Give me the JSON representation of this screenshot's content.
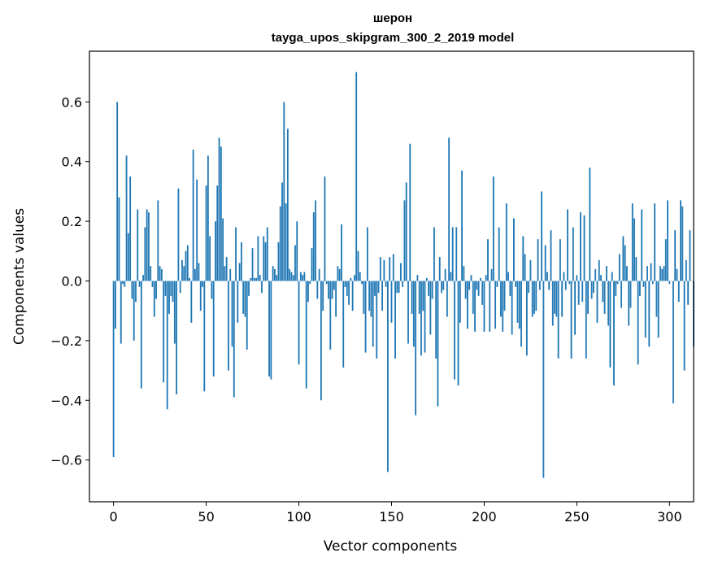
{
  "chart_data": {
    "type": "bar",
    "title_lines": [
      "шерон",
      "tayga_upos_skipgram_300_2_2019 model"
    ],
    "xlabel": "Vector components",
    "ylabel": "Components values",
    "xlim": [
      -13,
      313
    ],
    "ylim": [
      -0.74,
      0.77
    ],
    "xticks": [
      0,
      50,
      100,
      150,
      200,
      250,
      300
    ],
    "xtick_labels": [
      "0",
      "50",
      "100",
      "150",
      "200",
      "250",
      "300"
    ],
    "yticks": [
      -0.6,
      -0.4,
      -0.2,
      0.0,
      0.2,
      0.4,
      0.6
    ],
    "ytick_labels": [
      "−0.6",
      "−0.4",
      "−0.2",
      "0.0",
      "0.2",
      "0.4",
      "0.6"
    ],
    "bar_color": "#1f77b4",
    "values": [
      -0.59,
      -0.16,
      0.6,
      0.28,
      -0.21,
      -0.01,
      -0.02,
      0.42,
      0.16,
      0.35,
      -0.06,
      -0.2,
      -0.07,
      0.24,
      -0.02,
      -0.36,
      0.02,
      0.18,
      0.24,
      0.23,
      0.05,
      -0.02,
      -0.12,
      -0.06,
      0.27,
      0.05,
      0.04,
      -0.34,
      -0.05,
      -0.43,
      -0.11,
      -0.05,
      -0.07,
      -0.21,
      -0.38,
      0.31,
      -0.04,
      0.07,
      0.05,
      0.1,
      0.12,
      0.01,
      -0.14,
      0.44,
      0.04,
      0.34,
      0.06,
      -0.1,
      -0.02,
      -0.37,
      0.32,
      0.42,
      0.15,
      -0.06,
      -0.32,
      0.2,
      0.32,
      0.48,
      0.45,
      0.21,
      0.05,
      0.08,
      -0.3,
      0.04,
      -0.22,
      -0.39,
      0.18,
      -0.14,
      0.06,
      0.13,
      -0.11,
      -0.12,
      -0.23,
      -0.05,
      0.01,
      0.11,
      0.01,
      0.01,
      0.15,
      0.02,
      -0.04,
      0.15,
      0.13,
      0.18,
      -0.32,
      -0.33,
      0.05,
      0.04,
      0.02,
      0.13,
      0.25,
      0.33,
      0.6,
      0.26,
      0.51,
      0.04,
      0.03,
      0.02,
      0.12,
      0.2,
      -0.28,
      0.03,
      0.02,
      0.03,
      -0.36,
      -0.07,
      -0.01,
      0.11,
      0.23,
      0.27,
      -0.06,
      0.04,
      -0.4,
      -0.1,
      0.35,
      -0.01,
      -0.06,
      -0.23,
      -0.06,
      -0.03,
      -0.12,
      0.05,
      0.04,
      0.19,
      -0.29,
      -0.02,
      -0.05,
      -0.08,
      0.01,
      -0.1,
      0.02,
      0.7,
      0.1,
      0.03,
      -0.01,
      -0.11,
      -0.24,
      0.18,
      -0.1,
      -0.12,
      -0.22,
      -0.05,
      -0.26,
      -0.04,
      0.08,
      -0.1,
      0.07,
      -0.02,
      -0.64,
      0.08,
      -0.14,
      0.09,
      -0.26,
      -0.04,
      -0.04,
      0.06,
      -0.02,
      0.27,
      0.33,
      -0.21,
      0.46,
      -0.11,
      -0.22,
      -0.45,
      0.02,
      -0.11,
      -0.25,
      -0.1,
      -0.24,
      0.01,
      -0.05,
      -0.18,
      -0.06,
      0.18,
      -0.26,
      -0.42,
      0.08,
      -0.04,
      -0.03,
      0.04,
      -0.12,
      0.48,
      0.03,
      0.18,
      -0.33,
      0.18,
      -0.35,
      -0.14,
      0.37,
      0.05,
      -0.06,
      -0.16,
      -0.03,
      0.02,
      -0.11,
      -0.17,
      -0.03,
      -0.05,
      0.01,
      -0.08,
      -0.17,
      0.02,
      0.14,
      -0.17,
      0.04,
      0.35,
      -0.16,
      -0.02,
      0.18,
      -0.12,
      -0.17,
      -0.1,
      0.26,
      0.03,
      -0.05,
      -0.18,
      0.21,
      -0.02,
      -0.14,
      -0.16,
      -0.22,
      0.15,
      0.09,
      -0.25,
      -0.04,
      0.07,
      -0.12,
      -0.11,
      -0.1,
      0.14,
      -0.03,
      0.3,
      -0.66,
      0.12,
      0.03,
      -0.03,
      0.17,
      -0.15,
      -0.11,
      -0.12,
      -0.26,
      0.14,
      -0.12,
      0.03,
      -0.03,
      0.24,
      -0.01,
      -0.26,
      0.18,
      -0.18,
      0.02,
      -0.08,
      0.23,
      -0.07,
      0.22,
      -0.26,
      -0.11,
      0.38,
      -0.06,
      -0.04,
      0.04,
      -0.14,
      0.07,
      0.02,
      -0.07,
      -0.11,
      0.05,
      -0.15,
      -0.29,
      0.03,
      -0.35,
      -0.05,
      -0.01,
      0.09,
      -0.09,
      0.15,
      0.12,
      0.05,
      -0.15,
      -0.09,
      0.26,
      0.21,
      0.08,
      -0.28,
      -0.05,
      0.24,
      -0.02,
      -0.19,
      0.05,
      -0.22,
      0.06,
      -0.01,
      0.26,
      -0.12,
      -0.19,
      0.05,
      0.04,
      0.05,
      0.14,
      0.27,
      -0.01,
      0.0,
      -0.41,
      0.17,
      0.04,
      -0.07,
      0.27,
      0.25,
      -0.3,
      0.07,
      -0.08,
      0.17,
      0.0,
      -0.22
    ]
  }
}
